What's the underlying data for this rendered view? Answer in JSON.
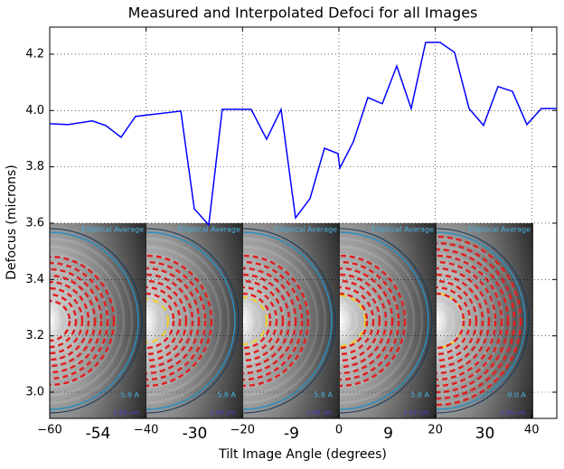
{
  "chart_data": {
    "type": "line",
    "title": "Measured and Interpolated Defoci for all Images",
    "x_label": "Tilt Image Angle (degrees)",
    "y_label": "Defocus (microns)",
    "x": [
      -60,
      -56.2,
      -51.2,
      -48.4,
      -45.2,
      -42.2,
      -32.8,
      -30,
      -27,
      -24.2,
      -18.2,
      -15,
      -12,
      -9,
      -6,
      -3,
      -0.2,
      0.2,
      3,
      6,
      9,
      12,
      15,
      18,
      21,
      24,
      27,
      30,
      33,
      36,
      39,
      42,
      45.2
    ],
    "series": [
      {
        "color": "#0000ff",
        "values": [
          3.953,
          3.95,
          3.963,
          3.947,
          3.905,
          3.979,
          3.998,
          3.651,
          3.594,
          4.004,
          4.004,
          3.898,
          4.004,
          3.619,
          3.687,
          3.866,
          3.847,
          3.796,
          3.889,
          4.046,
          4.024,
          4.158,
          4.007,
          4.242,
          4.242,
          4.206,
          4.007,
          3.947,
          4.085,
          4.068,
          3.95,
          4.007,
          4.007
        ]
      }
    ],
    "xlim": [
      -60,
      45.2
    ],
    "ylim": [
      2.907,
      4.296
    ],
    "xticks": [
      {
        "value": -60,
        "label": "−60"
      },
      {
        "value": -40,
        "label": "−40"
      },
      {
        "value": -20,
        "label": "−20"
      },
      0,
      20,
      40
    ],
    "yticks": [
      {
        "value": 3.0,
        "label": "3.0"
      },
      3.2,
      3.4,
      3.6,
      3.8,
      {
        "value": 4.0,
        "label": "4.0"
      },
      4.2
    ],
    "grid": true,
    "thumbnails": [
      {
        "label": "-54",
        "heading": "Elliptical Average",
        "resolution": "5.8 A",
        "defocus": "3.99 um"
      },
      {
        "label": "-30",
        "heading": "Elliptical Average",
        "resolution": "5.8 A",
        "defocus": "3.99 um"
      },
      {
        "label": "-9",
        "heading": "Elliptical Average",
        "resolution": "5.8 A",
        "defocus": "3.86 um"
      },
      {
        "label": "9",
        "heading": "Elliptical Average",
        "resolution": "5.8 A",
        "defocus": "4.03 um"
      },
      {
        "label": "30",
        "heading": "Elliptical Average",
        "resolution": "8.0 A",
        "defocus": "3.85 um"
      }
    ]
  }
}
